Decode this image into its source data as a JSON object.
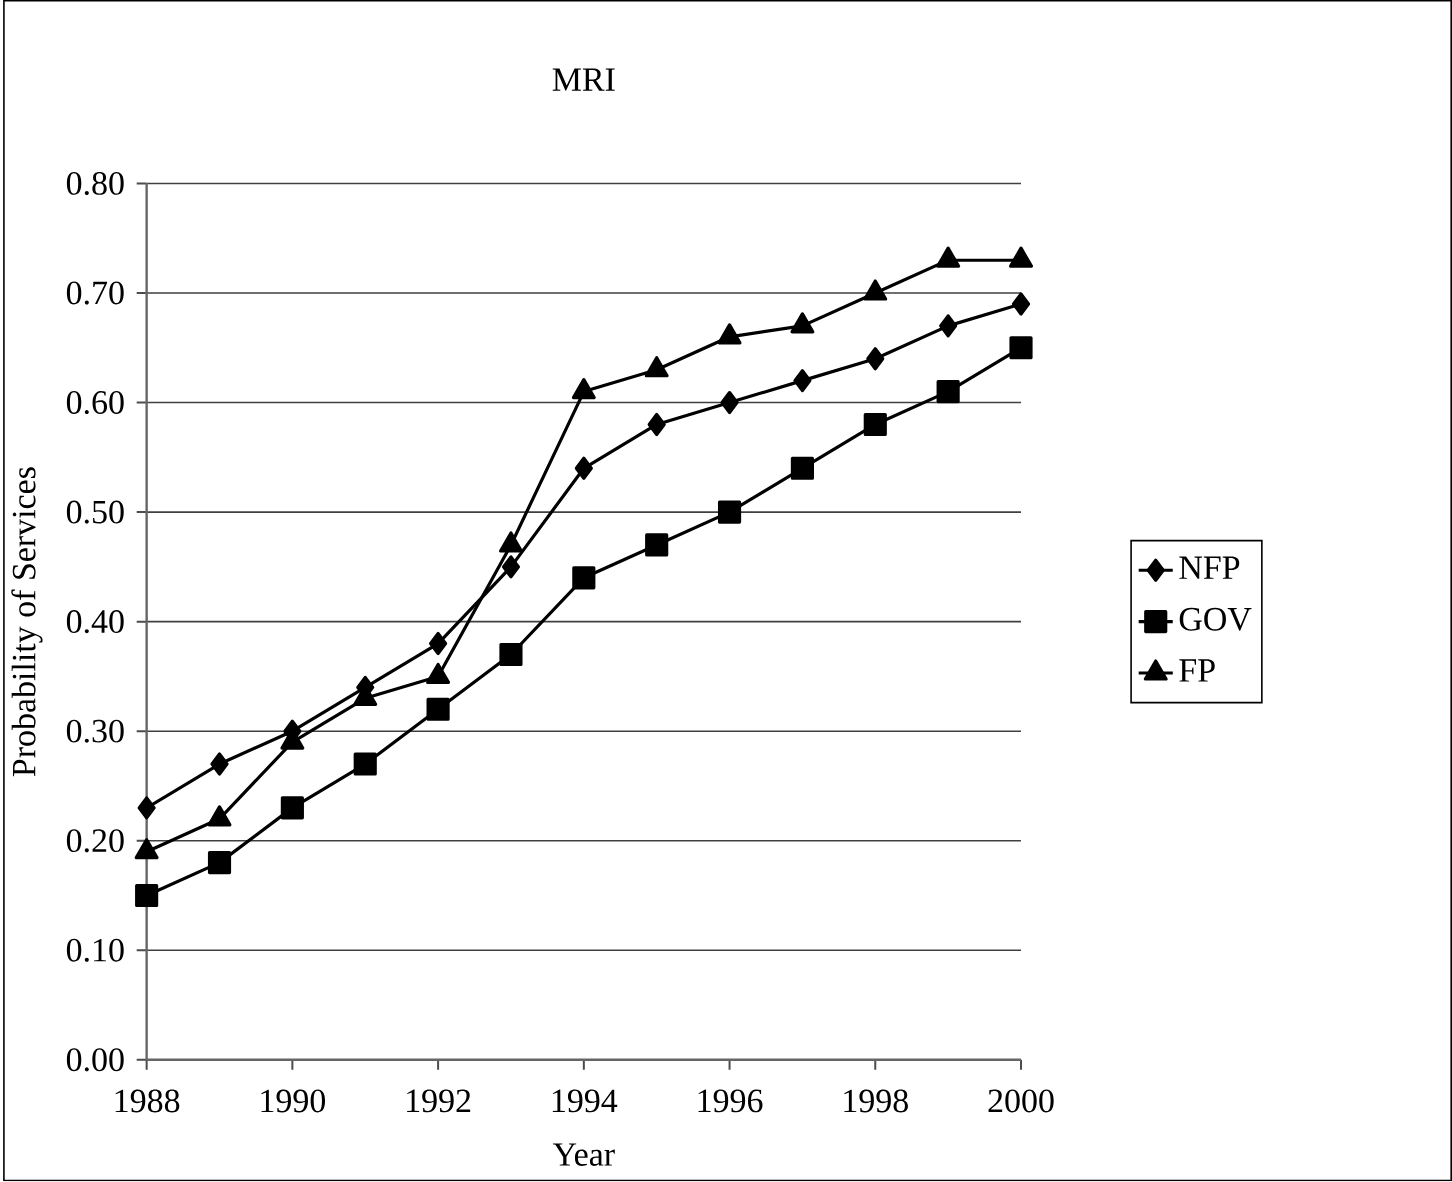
{
  "chart_data": {
    "type": "line",
    "title": "MRI",
    "xlabel": "Year",
    "ylabel": "Probability of Services",
    "x": [
      1988,
      1989,
      1990,
      1991,
      1992,
      1993,
      1994,
      1995,
      1996,
      1997,
      1998,
      1999,
      2000
    ],
    "series": [
      {
        "name": "NFP",
        "color": "#000000",
        "marker": "diamond",
        "values": [
          0.23,
          0.27,
          0.3,
          0.34,
          0.38,
          0.45,
          0.54,
          0.58,
          0.6,
          0.62,
          0.64,
          0.67,
          0.69
        ]
      },
      {
        "name": "GOV",
        "color": "#000000",
        "marker": "square",
        "values": [
          0.15,
          0.18,
          0.23,
          0.27,
          0.32,
          0.37,
          0.44,
          0.47,
          0.5,
          0.54,
          0.58,
          0.61,
          0.65
        ]
      },
      {
        "name": "FP",
        "color": "#000000",
        "marker": "triangle",
        "values": [
          0.19,
          0.22,
          0.29,
          0.33,
          0.35,
          0.47,
          0.61,
          0.63,
          0.66,
          0.67,
          0.7,
          0.73,
          0.73
        ]
      }
    ],
    "xlim": [
      1988,
      2000
    ],
    "xticks": [
      1988,
      1990,
      1992,
      1994,
      1996,
      1998,
      2000
    ],
    "ylim": [
      0,
      0.8
    ],
    "yticks": [
      {
        "value": 0,
        "label": "0.00"
      },
      {
        "value": 0.1,
        "label": "0.10"
      },
      {
        "value": 0.2,
        "label": "0.20"
      },
      {
        "value": 0.3,
        "label": "0.30"
      },
      {
        "value": 0.4,
        "label": "0.40"
      },
      {
        "value": 0.5,
        "label": "0.50"
      },
      {
        "value": 0.6,
        "label": "0.60"
      },
      {
        "value": 0.7,
        "label": "0.70"
      },
      {
        "value": 0.8,
        "label": "0.80"
      }
    ],
    "grid": "y",
    "legend": "right",
    "line_style": "solid"
  }
}
